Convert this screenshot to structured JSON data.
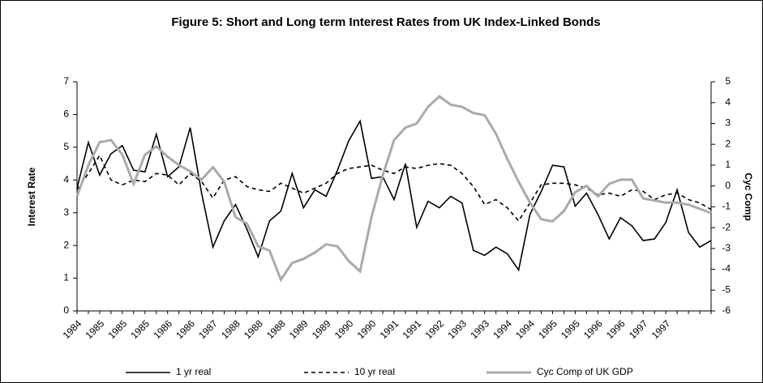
{
  "chart_data": {
    "type": "line",
    "title": "Figure 5: Short and Long term Interest Rates from UK Index-Linked Bonds",
    "y_label": "Interest Rate",
    "y2_label": "Cyc Comp",
    "categories": [
      "1984",
      null,
      "1985",
      null,
      "1985",
      null,
      "1985",
      null,
      "1986",
      null,
      "1986",
      null,
      "1987",
      null,
      "1988",
      null,
      "1988",
      null,
      "1988",
      null,
      "1989",
      null,
      "1989",
      null,
      "1990",
      null,
      "1990",
      null,
      "1991",
      null,
      "1991",
      null,
      "1992",
      null,
      "1993",
      null,
      "1993",
      null,
      "1994",
      null,
      "1994",
      null,
      "1995",
      null,
      "1995",
      null,
      "1996",
      null,
      "1996",
      null,
      "1997",
      null,
      "1997",
      null,
      null,
      null,
      null
    ],
    "series": [
      {
        "name": "1 yr real",
        "color": "#000000",
        "dash": "solid",
        "values": [
          3.75,
          5.15,
          4.15,
          4.8,
          5.05,
          4.3,
          4.25,
          5.4,
          4.1,
          4.4,
          5.6,
          3.6,
          1.95,
          2.75,
          3.25,
          2.5,
          1.65,
          2.75,
          3.05,
          4.2,
          3.15,
          3.7,
          3.5,
          4.3,
          5.2,
          5.8,
          4.05,
          4.1,
          3.4,
          4.5,
          2.55,
          3.35,
          3.15,
          3.5,
          3.3,
          1.85,
          1.7,
          1.95,
          1.75,
          1.25,
          2.95,
          3.65,
          4.45,
          4.4,
          3.2,
          3.6,
          2.95,
          2.2,
          2.85,
          2.6,
          2.15,
          2.2,
          2.7,
          3.7,
          2.4,
          1.95,
          2.15
        ]
      },
      {
        "name": "10 yr real",
        "color": "#000000",
        "dash": "dashed",
        "values": [
          3.7,
          4.2,
          4.75,
          4.0,
          3.85,
          4.0,
          3.95,
          4.2,
          4.15,
          3.85,
          4.2,
          3.95,
          3.45,
          4.0,
          4.1,
          3.8,
          3.7,
          3.65,
          3.9,
          3.75,
          3.6,
          3.75,
          3.9,
          4.2,
          4.35,
          4.4,
          4.45,
          4.3,
          4.2,
          4.4,
          4.35,
          4.45,
          4.5,
          4.45,
          4.2,
          3.8,
          3.25,
          3.4,
          3.15,
          2.75,
          3.3,
          3.85,
          3.9,
          3.9,
          3.85,
          3.75,
          3.55,
          3.6,
          3.5,
          3.7,
          3.65,
          3.4,
          3.55,
          3.6,
          3.4,
          3.3,
          3.1
        ]
      },
      {
        "name": "Cyc Comp of UK GDP",
        "color": "#aaaaaa",
        "dash": "solid",
        "axis": "y2",
        "values": [
          -0.5,
          1.0,
          2.1,
          2.2,
          1.5,
          0.1,
          1.5,
          1.9,
          1.4,
          1.0,
          0.7,
          0.3,
          0.9,
          0.2,
          -1.5,
          -1.8,
          -2.9,
          -3.1,
          -4.5,
          -3.7,
          -3.5,
          -3.2,
          -2.8,
          -2.9,
          -3.6,
          -4.1,
          -1.5,
          0.5,
          2.2,
          2.8,
          3.0,
          3.8,
          4.3,
          3.9,
          3.8,
          3.5,
          3.4,
          2.5,
          1.3,
          0.2,
          -0.8,
          -1.6,
          -1.7,
          -1.2,
          -0.3,
          0.0,
          -0.5,
          0.1,
          0.3,
          0.3,
          -0.6,
          -0.7,
          -0.8,
          -0.8,
          -0.9,
          -1.1,
          -1.3
        ]
      }
    ],
    "ylim": [
      0,
      7
    ],
    "yticks": [
      0,
      1,
      2,
      3,
      4,
      5,
      6,
      7
    ],
    "y2lim": [
      -6,
      5
    ],
    "y2ticks": [
      -6,
      -5,
      -4,
      -3,
      -2,
      -1,
      0,
      1,
      2,
      3,
      4,
      5
    ],
    "legend": "bottom"
  }
}
